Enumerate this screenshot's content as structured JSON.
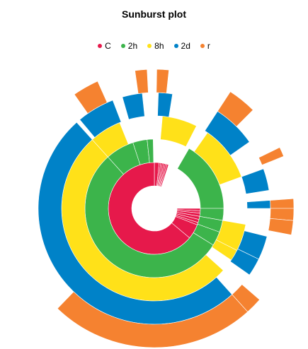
{
  "chart_data": {
    "type": "sunburst",
    "title": "Sunburst plot",
    "legend_position": "top-center",
    "levels": [
      {
        "name": "C",
        "color": "#e6194b"
      },
      {
        "name": "2h",
        "color": "#3cb44b"
      },
      {
        "name": "8h",
        "color": "#ffe119"
      },
      {
        "name": "2d",
        "color": "#0082c8"
      },
      {
        "name": "r",
        "color": "#f58230"
      }
    ],
    "segments": [
      {
        "level": 0,
        "start": 0,
        "end": 6
      },
      {
        "level": 0,
        "start": 6,
        "end": 8
      },
      {
        "level": 0,
        "start": 8,
        "end": 10
      },
      {
        "level": 0,
        "start": 10,
        "end": 12
      },
      {
        "level": 0,
        "start": 12,
        "end": 14
      },
      {
        "level": 0,
        "start": 14,
        "end": 16
      },
      {
        "level": 0,
        "start": 16,
        "end": 18
      },
      {
        "level": 0,
        "start": 90,
        "end": 93
      },
      {
        "level": 0,
        "start": 93,
        "end": 96
      },
      {
        "level": 0,
        "start": 96,
        "end": 100
      },
      {
        "level": 0,
        "start": 100,
        "end": 104
      },
      {
        "level": 0,
        "start": 104,
        "end": 108
      },
      {
        "level": 0,
        "start": 108,
        "end": 111
      },
      {
        "level": 0,
        "start": 111,
        "end": 130
      },
      {
        "level": 0,
        "start": 130,
        "end": 360
      },
      {
        "level": 1,
        "start": 30,
        "end": 90
      },
      {
        "level": 1,
        "start": 90,
        "end": 100
      },
      {
        "level": 1,
        "start": 100,
        "end": 110
      },
      {
        "level": 1,
        "start": 110,
        "end": 122
      },
      {
        "level": 1,
        "start": 122,
        "end": 318
      },
      {
        "level": 1,
        "start": 318,
        "end": 342
      },
      {
        "level": 1,
        "start": 342,
        "end": 354
      },
      {
        "level": 1,
        "start": 354,
        "end": 359
      },
      {
        "level": 2,
        "start": 5,
        "end": 27
      },
      {
        "level": 2,
        "start": 35,
        "end": 70
      },
      {
        "level": 2,
        "start": 100,
        "end": 117
      },
      {
        "level": 2,
        "start": 117,
        "end": 124
      },
      {
        "level": 2,
        "start": 132,
        "end": 318
      },
      {
        "level": 2,
        "start": 318,
        "end": 338
      },
      {
        "level": 3,
        "start": 2,
        "end": 9
      },
      {
        "level": 3,
        "start": 344,
        "end": 354
      },
      {
        "level": 3,
        "start": 33,
        "end": 55
      },
      {
        "level": 3,
        "start": 70,
        "end": 81
      },
      {
        "level": 3,
        "start": 86,
        "end": 90
      },
      {
        "level": 3,
        "start": 104,
        "end": 116
      },
      {
        "level": 3,
        "start": 116,
        "end": 125
      },
      {
        "level": 3,
        "start": 138,
        "end": 318
      },
      {
        "level": 3,
        "start": 320,
        "end": 339
      },
      {
        "level": 4,
        "start": 1,
        "end": 6
      },
      {
        "level": 4,
        "start": 352,
        "end": 357
      },
      {
        "level": 4,
        "start": 33,
        "end": 45
      },
      {
        "level": 4,
        "start": 64,
        "end": 68
      },
      {
        "level": 4,
        "start": 86,
        "end": 90
      },
      {
        "level": 4,
        "start": 90,
        "end": 95
      },
      {
        "level": 4,
        "start": 95,
        "end": 101
      },
      {
        "level": 4,
        "start": 131,
        "end": 138
      },
      {
        "level": 4,
        "start": 138,
        "end": 224
      },
      {
        "level": 4,
        "start": 325,
        "end": 336
      }
    ]
  }
}
